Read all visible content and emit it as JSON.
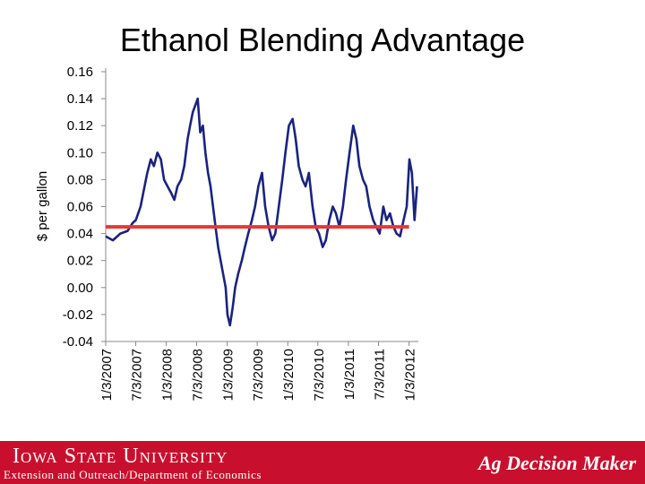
{
  "slide": {
    "title": "Ethanol Blending Advantage"
  },
  "footer": {
    "university": "Iowa State University",
    "department": "Extension and Outreach/Department of Economics",
    "brand": "Ag Decision Maker",
    "background_color": "#c8102e"
  },
  "chart_data": {
    "type": "line",
    "title": "",
    "xlabel": "",
    "ylabel": "$ per gallon",
    "ylim": [
      -0.04,
      0.16
    ],
    "yticks": [
      "0.16",
      "0.14",
      "0.12",
      "0.10",
      "0.08",
      "0.06",
      "0.04",
      "0.02",
      "0.00",
      "-0.02",
      "-0.04"
    ],
    "xticks": [
      "1/3/2007",
      "7/3/2007",
      "1/3/2008",
      "7/3/2008",
      "1/3/2009",
      "7/3/2009",
      "1/3/2010",
      "7/3/2010",
      "1/3/2011",
      "7/3/2011",
      "1/3/2012"
    ],
    "grid": false,
    "legend": "none",
    "series": [
      {
        "color": "#1a237e",
        "x": [
          "2007-01-03",
          "2007-02-15",
          "2007-04-01",
          "2007-05-15",
          "2007-06-15",
          "2007-07-03",
          "2007-08-01",
          "2007-08-20",
          "2007-09-10",
          "2007-10-01",
          "2007-10-20",
          "2007-11-10",
          "2007-12-01",
          "2007-12-20",
          "2008-01-10",
          "2008-02-01",
          "2008-02-20",
          "2008-03-10",
          "2008-04-01",
          "2008-04-20",
          "2008-05-10",
          "2008-05-25",
          "2008-06-10",
          "2008-06-25",
          "2008-07-10",
          "2008-07-25",
          "2008-08-10",
          "2008-08-25",
          "2008-09-10",
          "2008-09-25",
          "2008-10-10",
          "2008-10-25",
          "2008-11-10",
          "2008-11-25",
          "2008-12-10",
          "2008-12-25",
          "2009-01-05",
          "2009-01-20",
          "2009-02-05",
          "2009-02-20",
          "2009-03-10",
          "2009-04-01",
          "2009-04-20",
          "2009-05-10",
          "2009-06-01",
          "2009-06-20",
          "2009-07-10",
          "2009-08-01",
          "2009-08-20",
          "2009-09-10",
          "2009-10-01",
          "2009-10-20",
          "2009-11-10",
          "2009-12-01",
          "2009-12-20",
          "2010-01-10",
          "2010-02-01",
          "2010-02-20",
          "2010-03-10",
          "2010-04-01",
          "2010-04-20",
          "2010-05-10",
          "2010-06-01",
          "2010-06-20",
          "2010-07-10",
          "2010-08-01",
          "2010-08-20",
          "2010-09-10",
          "2010-10-01",
          "2010-10-20",
          "2010-11-10",
          "2010-12-01",
          "2010-12-20",
          "2011-01-10",
          "2011-02-01",
          "2011-02-20",
          "2011-03-10",
          "2011-04-01",
          "2011-04-20",
          "2011-05-10",
          "2011-06-01",
          "2011-06-20",
          "2011-07-10",
          "2011-08-01",
          "2011-08-20",
          "2011-09-10",
          "2011-10-01",
          "2011-10-20",
          "2011-11-10",
          "2011-12-01",
          "2011-12-20",
          "2012-01-05",
          "2012-01-20",
          "2012-02-05",
          "2012-02-20"
        ],
        "y": [
          0.038,
          0.035,
          0.04,
          0.042,
          0.048,
          0.05,
          0.06,
          0.072,
          0.085,
          0.095,
          0.09,
          0.1,
          0.095,
          0.08,
          0.075,
          0.07,
          0.065,
          0.075,
          0.08,
          0.09,
          0.11,
          0.12,
          0.13,
          0.135,
          0.14,
          0.115,
          0.12,
          0.1,
          0.085,
          0.075,
          0.06,
          0.045,
          0.03,
          0.02,
          0.01,
          0.0,
          -0.02,
          -0.028,
          -0.015,
          0.0,
          0.01,
          0.02,
          0.03,
          0.04,
          0.05,
          0.06,
          0.075,
          0.085,
          0.06,
          0.045,
          0.035,
          0.04,
          0.06,
          0.08,
          0.1,
          0.12,
          0.125,
          0.11,
          0.09,
          0.08,
          0.075,
          0.085,
          0.06,
          0.045,
          0.04,
          0.03,
          0.035,
          0.05,
          0.06,
          0.055,
          0.045,
          0.06,
          0.08,
          0.1,
          0.12,
          0.11,
          0.09,
          0.08,
          0.075,
          0.06,
          0.05,
          0.045,
          0.04,
          0.06,
          0.05,
          0.055,
          0.045,
          0.04,
          0.038,
          0.05,
          0.06,
          0.095,
          0.085,
          0.05,
          0.075
        ]
      },
      {
        "color": "#e53935",
        "x": [
          "2007-01-03",
          "2012-01-03"
        ],
        "y": [
          0.045,
          0.045
        ]
      }
    ]
  }
}
